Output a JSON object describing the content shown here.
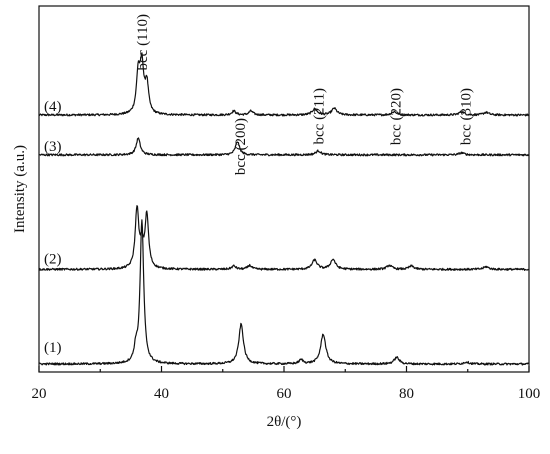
{
  "chart_data": {
    "type": "line",
    "xlabel": "2θ/(°)",
    "ylabel": "Intensity (a.u.)",
    "xlim": [
      20,
      100
    ],
    "x_ticks": [
      "20",
      "40",
      "60",
      "80",
      "100"
    ],
    "y_ticks_shown": false,
    "grid": false,
    "peak_annotations": [
      {
        "label": "bcc (110)",
        "x": 36.8
      },
      {
        "label": "bcc (200)",
        "x": 52.8
      },
      {
        "label": "bcc (211)",
        "x": 65.6
      },
      {
        "label": "bcc (220)",
        "x": 78.2
      },
      {
        "label": "bcc (310)",
        "x": 89.6
      }
    ],
    "series": [
      {
        "name": "(4)",
        "baseline": 0.75,
        "peaks": [
          {
            "x": 36.2,
            "h": 0.12,
            "w": 0.35
          },
          {
            "x": 36.8,
            "h": 0.14,
            "w": 0.35
          },
          {
            "x": 37.6,
            "h": 0.09,
            "w": 0.35
          },
          {
            "x": 51.8,
            "h": 0.012,
            "w": 0.4
          },
          {
            "x": 54.6,
            "h": 0.012,
            "w": 0.4
          },
          {
            "x": 65.0,
            "h": 0.018,
            "w": 0.5
          },
          {
            "x": 68.2,
            "h": 0.02,
            "w": 0.5
          },
          {
            "x": 78.0,
            "h": 0.01,
            "w": 0.5
          },
          {
            "x": 89.0,
            "h": 0.01,
            "w": 0.5
          },
          {
            "x": 93.0,
            "h": 0.008,
            "w": 0.5
          }
        ]
      },
      {
        "name": "(3)",
        "baseline": 0.63,
        "peaks": [
          {
            "x": 36.2,
            "h": 0.05,
            "w": 0.4
          },
          {
            "x": 52.4,
            "h": 0.04,
            "w": 0.4
          },
          {
            "x": 65.6,
            "h": 0.012,
            "w": 0.5
          },
          {
            "x": 89.0,
            "h": 0.006,
            "w": 0.5
          }
        ]
      },
      {
        "name": "(2)",
        "baseline": 0.285,
        "peaks": [
          {
            "x": 36.0,
            "h": 0.18,
            "w": 0.35
          },
          {
            "x": 36.8,
            "h": 0.06,
            "w": 0.3
          },
          {
            "x": 37.6,
            "h": 0.16,
            "w": 0.35
          },
          {
            "x": 51.8,
            "h": 0.01,
            "w": 0.4
          },
          {
            "x": 54.4,
            "h": 0.012,
            "w": 0.4
          },
          {
            "x": 65.0,
            "h": 0.028,
            "w": 0.5
          },
          {
            "x": 68.0,
            "h": 0.03,
            "w": 0.5
          },
          {
            "x": 77.2,
            "h": 0.012,
            "w": 0.5
          },
          {
            "x": 80.8,
            "h": 0.01,
            "w": 0.5
          },
          {
            "x": 93.0,
            "h": 0.008,
            "w": 0.5
          }
        ]
      },
      {
        "name": "(1)",
        "baseline": 0.0,
        "peaks": [
          {
            "x": 35.8,
            "h": 0.04,
            "w": 0.3
          },
          {
            "x": 36.8,
            "h": 0.43,
            "w": 0.35
          },
          {
            "x": 53.0,
            "h": 0.12,
            "w": 0.45
          },
          {
            "x": 62.8,
            "h": 0.012,
            "w": 0.4
          },
          {
            "x": 66.4,
            "h": 0.09,
            "w": 0.5
          },
          {
            "x": 78.4,
            "h": 0.02,
            "w": 0.5
          },
          {
            "x": 89.8,
            "h": 0.006,
            "w": 0.5
          }
        ]
      }
    ]
  }
}
